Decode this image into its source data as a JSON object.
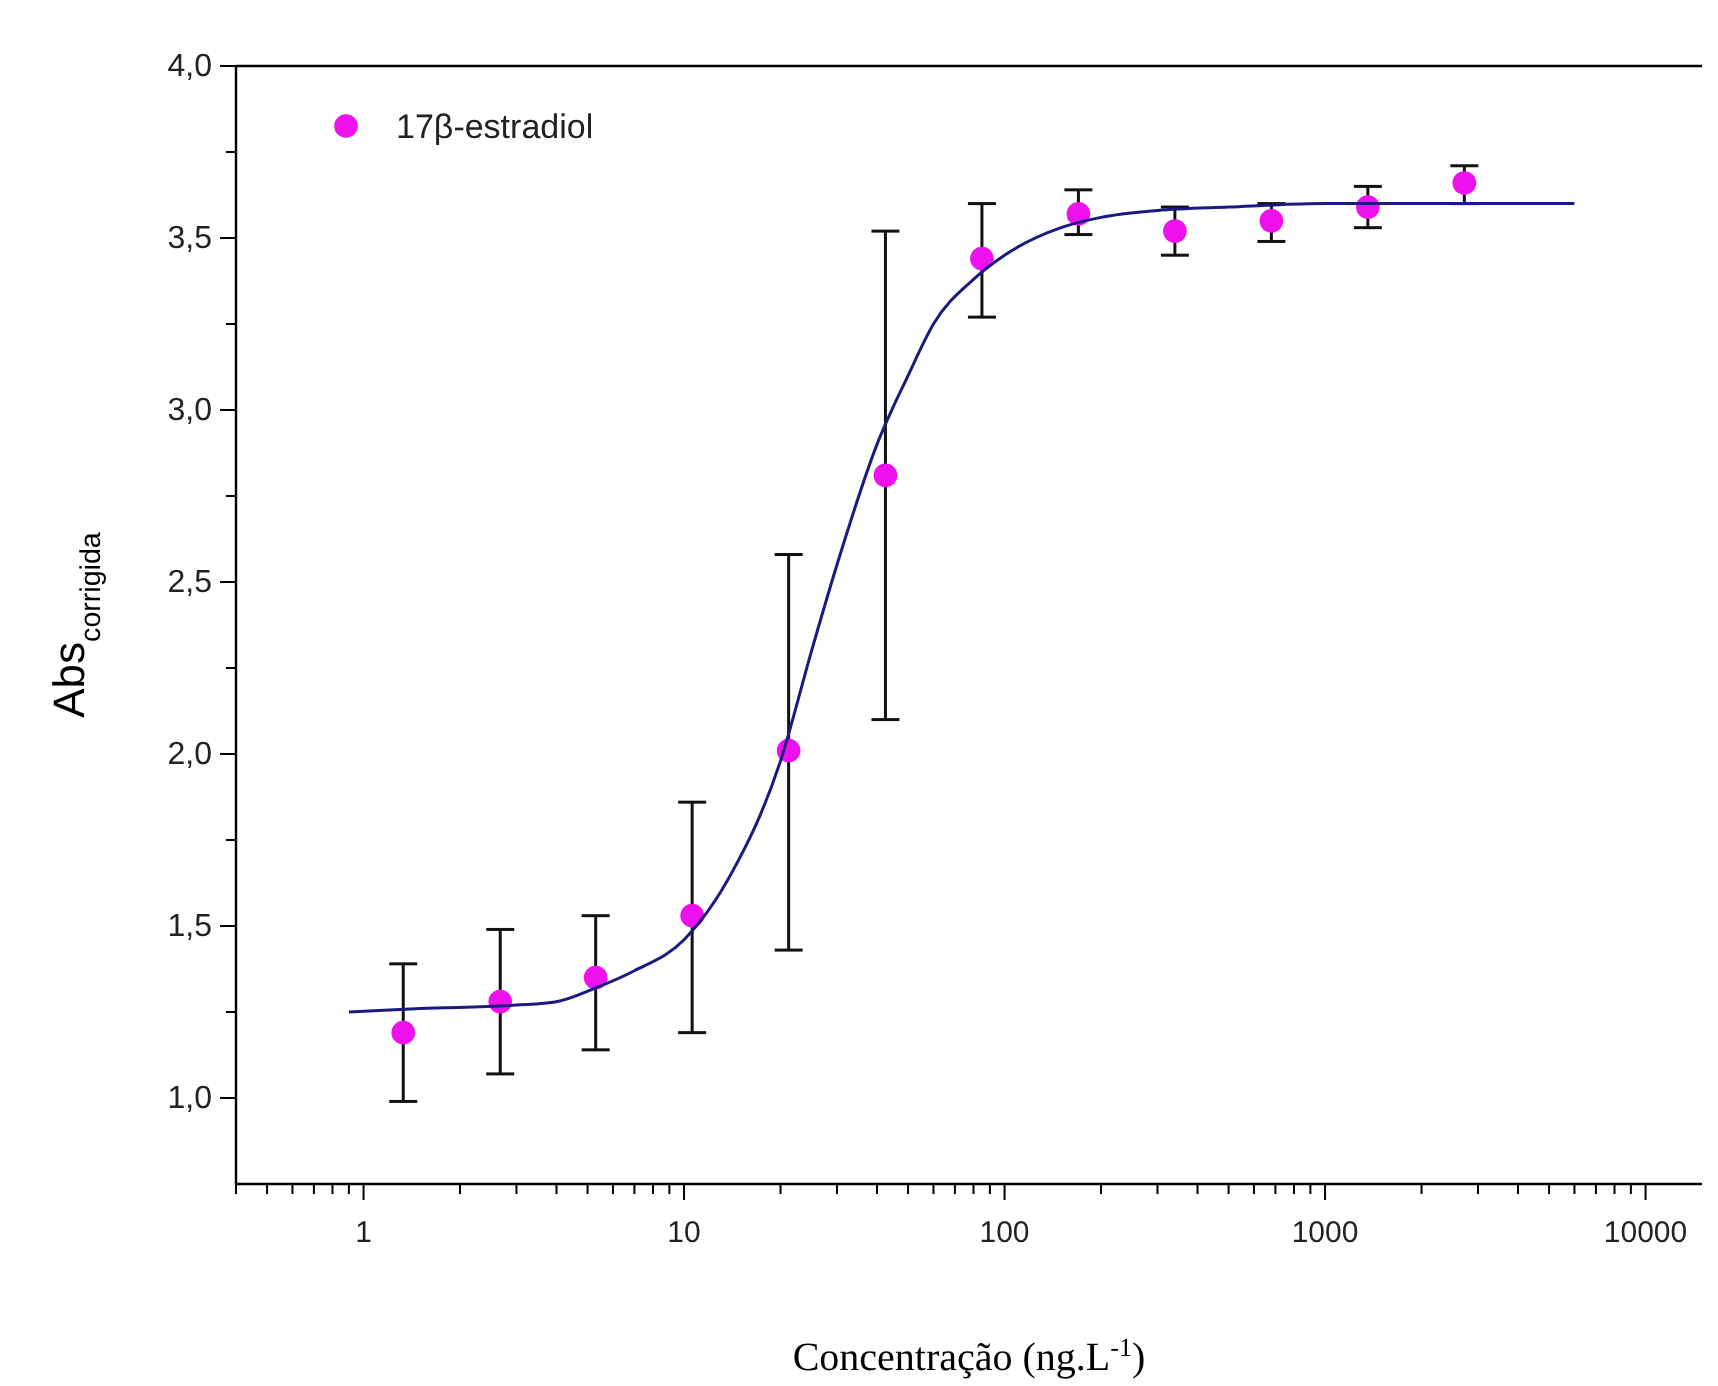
{
  "chart_data": {
    "type": "scatter",
    "xlabel": "Concentração (ng.L$^{-1}$)",
    "ylabel": "Abs$_{corrigida}$",
    "log": "x",
    "xlim": [
      0.4,
      15000
    ],
    "ylim": [
      0.75,
      4.0
    ],
    "xticks": [
      {
        "value": 0.4,
        "label": null
      },
      {
        "value": 0.5,
        "label": null
      },
      {
        "value": 0.6,
        "label": null
      },
      {
        "value": 0.7,
        "label": null
      },
      {
        "value": 0.8,
        "label": null
      },
      {
        "value": 0.9,
        "label": null
      },
      1,
      {
        "value": 2,
        "label": null
      },
      {
        "value": 3,
        "label": null
      },
      {
        "value": 4,
        "label": null
      },
      {
        "value": 5,
        "label": null
      },
      {
        "value": 6,
        "label": null
      },
      {
        "value": 7,
        "label": null
      },
      {
        "value": 8,
        "label": null
      },
      {
        "value": 9,
        "label": null
      },
      10,
      {
        "value": 20,
        "label": null
      },
      {
        "value": 30,
        "label": null
      },
      {
        "value": 40,
        "label": null
      },
      {
        "value": 50,
        "label": null
      },
      {
        "value": 60,
        "label": null
      },
      {
        "value": 70,
        "label": null
      },
      {
        "value": 80,
        "label": null
      },
      {
        "value": 90,
        "label": null
      },
      100,
      {
        "value": 200,
        "label": null
      },
      {
        "value": 300,
        "label": null
      },
      {
        "value": 400,
        "label": null
      },
      {
        "value": 500,
        "label": null
      },
      {
        "value": 600,
        "label": null
      },
      {
        "value": 700,
        "label": null
      },
      {
        "value": 800,
        "label": null
      },
      {
        "value": 900,
        "label": null
      },
      1000,
      {
        "value": 2000,
        "label": null
      },
      {
        "value": 3000,
        "label": null
      },
      {
        "value": 4000,
        "label": null
      },
      {
        "value": 5000,
        "label": null
      },
      {
        "value": 6000,
        "label": null
      },
      {
        "value": 7000,
        "label": null
      },
      {
        "value": 8000,
        "label": null
      },
      {
        "value": 9000,
        "label": null
      },
      10000
    ],
    "yticks": [
      {
        "value": 1.0,
        "label": "1,0"
      },
      {
        "value": 1.25,
        "label": null
      },
      {
        "value": 1.5,
        "label": "1,5"
      },
      {
        "value": 1.75,
        "label": null
      },
      {
        "value": 2.0,
        "label": "2,0"
      },
      {
        "value": 2.25,
        "label": null
      },
      {
        "value": 2.5,
        "label": "2,5"
      },
      {
        "value": 2.75,
        "label": null
      },
      {
        "value": 3.0,
        "label": "3,0"
      },
      {
        "value": 3.25,
        "label": null
      },
      {
        "value": 3.5,
        "label": "3,5"
      },
      {
        "value": 3.75,
        "label": null
      },
      {
        "value": 4.0,
        "label": "4,0"
      }
    ],
    "grid": false,
    "legend": "top left",
    "series": [
      {
        "name": "17β-estradiol",
        "marker": "circle",
        "color": "#ee11ee",
        "x": [
          1.33,
          2.67,
          5.3,
          10.6,
          21.2,
          42.5,
          85,
          170,
          340,
          680,
          1360,
          2720
        ],
        "values": [
          1.19,
          1.28,
          1.35,
          1.53,
          2.01,
          2.81,
          3.44,
          3.57,
          3.52,
          3.55,
          3.59,
          3.66
        ],
        "errors": [
          [
            0.99,
            1.39
          ],
          [
            1.07,
            1.49
          ],
          [
            1.14,
            1.53
          ],
          [
            1.19,
            1.86
          ],
          [
            1.43,
            2.58
          ],
          [
            2.1,
            3.52
          ],
          [
            3.27,
            3.6
          ],
          [
            3.51,
            3.64
          ],
          [
            3.45,
            3.59
          ],
          [
            3.49,
            3.6
          ],
          [
            3.53,
            3.65
          ],
          [
            3.6,
            3.71
          ]
        ]
      },
      {
        "type": "line",
        "color": "#1a1a80",
        "marker": "none",
        "line_style": "solid",
        "x": [
          0.9,
          1.5,
          3,
          4,
          5.3,
          7,
          10,
          14,
          20,
          25,
          30,
          40,
          50,
          60,
          80,
          100,
          150,
          200,
          300,
          500,
          1000,
          6000
        ],
        "values": [
          1.25,
          1.26,
          1.27,
          1.28,
          1.32,
          1.37,
          1.46,
          1.65,
          1.98,
          2.3,
          2.55,
          2.9,
          3.1,
          3.25,
          3.38,
          3.45,
          3.53,
          3.56,
          3.58,
          3.59,
          3.6,
          3.6
        ]
      }
    ]
  }
}
